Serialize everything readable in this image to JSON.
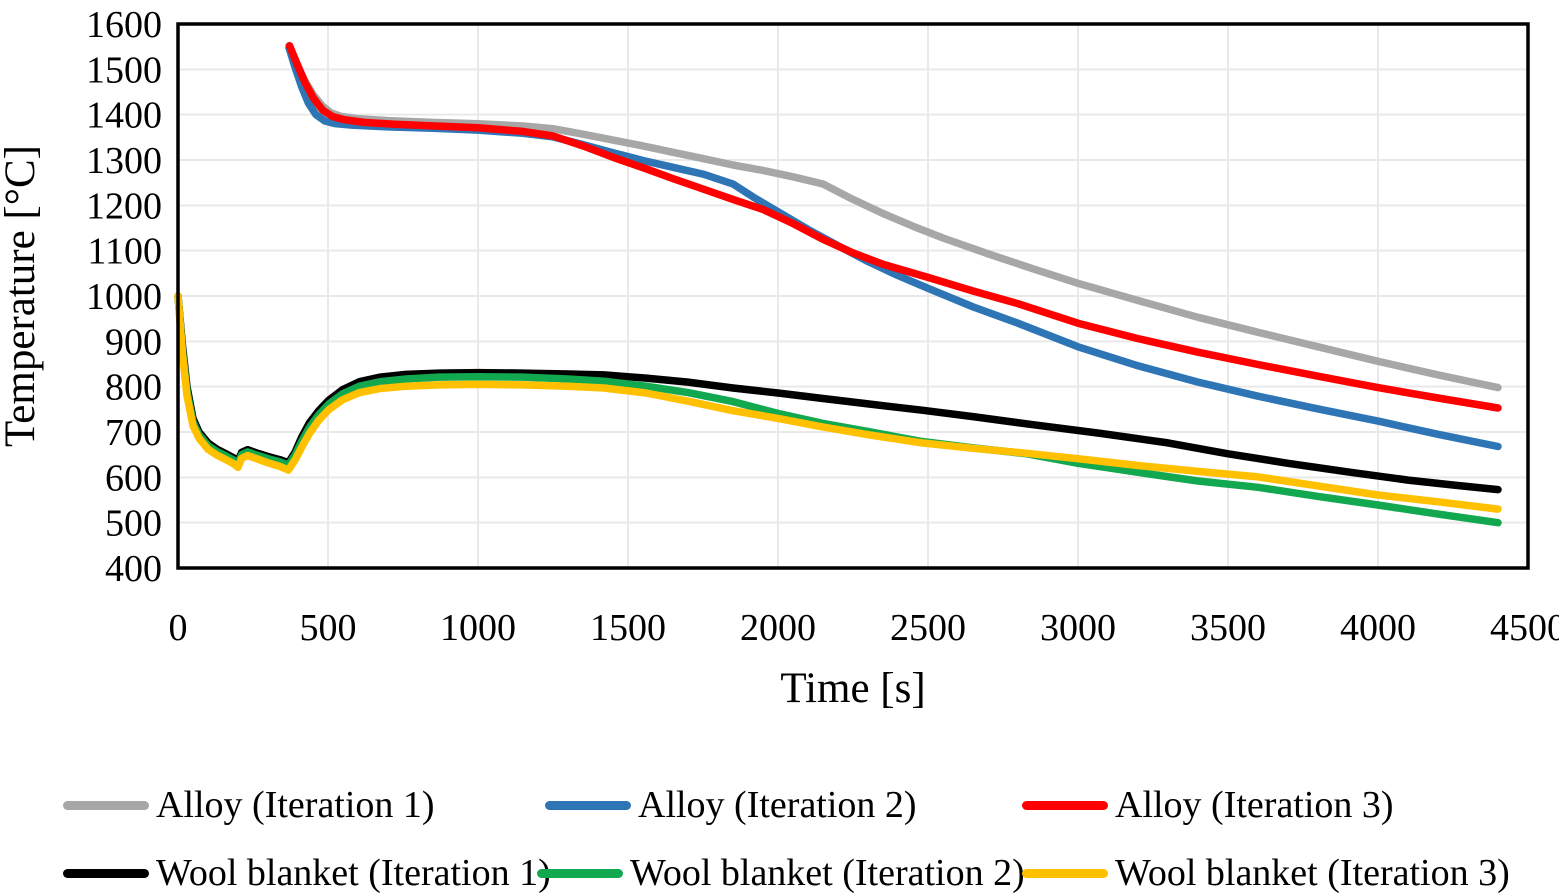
{
  "chart_data": {
    "type": "line",
    "title": "",
    "xlabel": "Time [s]",
    "ylabel": "Temperature [°C]",
    "xlim": [
      0,
      4500
    ],
    "ylim": [
      400,
      1600
    ],
    "x_ticks": [
      0,
      500,
      1000,
      1500,
      2000,
      2500,
      3000,
      3500,
      4000,
      4500
    ],
    "y_ticks": [
      400,
      500,
      600,
      700,
      800,
      900,
      1000,
      1100,
      1200,
      1300,
      1400,
      1500,
      1600
    ],
    "grid": "on",
    "gridline_color": "#E9E9E9",
    "axis_color": "#000000",
    "legend_position": "bottom",
    "series": [
      {
        "name": "Alloy (Iteration 1)",
        "color": "#A7A7A7",
        "points": [
          [
            370,
            1552
          ],
          [
            395,
            1515
          ],
          [
            420,
            1478
          ],
          [
            450,
            1445
          ],
          [
            480,
            1420
          ],
          [
            510,
            1404
          ],
          [
            545,
            1396
          ],
          [
            600,
            1391
          ],
          [
            700,
            1387
          ],
          [
            850,
            1383
          ],
          [
            1000,
            1380
          ],
          [
            1150,
            1375
          ],
          [
            1250,
            1369
          ],
          [
            1350,
            1357
          ],
          [
            1450,
            1344
          ],
          [
            1550,
            1331
          ],
          [
            1650,
            1317
          ],
          [
            1750,
            1303
          ],
          [
            1850,
            1289
          ],
          [
            1950,
            1277
          ],
          [
            2050,
            1263
          ],
          [
            2150,
            1247
          ],
          [
            2250,
            1213
          ],
          [
            2350,
            1182
          ],
          [
            2450,
            1154
          ],
          [
            2550,
            1128
          ],
          [
            2700,
            1093
          ],
          [
            2850,
            1060
          ],
          [
            3000,
            1028
          ],
          [
            3200,
            990
          ],
          [
            3400,
            953
          ],
          [
            3600,
            920
          ],
          [
            3800,
            888
          ],
          [
            4000,
            856
          ],
          [
            4200,
            826
          ],
          [
            4400,
            798
          ]
        ]
      },
      {
        "name": "Alloy (Iteration 2)",
        "color": "#2E75B6",
        "points": [
          [
            370,
            1548
          ],
          [
            390,
            1505
          ],
          [
            412,
            1462
          ],
          [
            435,
            1425
          ],
          [
            460,
            1400
          ],
          [
            490,
            1386
          ],
          [
            525,
            1380
          ],
          [
            580,
            1377
          ],
          [
            700,
            1373
          ],
          [
            850,
            1370
          ],
          [
            1000,
            1366
          ],
          [
            1150,
            1359
          ],
          [
            1250,
            1351
          ],
          [
            1350,
            1334
          ],
          [
            1450,
            1316
          ],
          [
            1550,
            1299
          ],
          [
            1650,
            1284
          ],
          [
            1750,
            1269
          ],
          [
            1850,
            1247
          ],
          [
            1925,
            1215
          ],
          [
            2000,
            1186
          ],
          [
            2100,
            1147
          ],
          [
            2200,
            1111
          ],
          [
            2300,
            1076
          ],
          [
            2400,
            1045
          ],
          [
            2500,
            1017
          ],
          [
            2650,
            976
          ],
          [
            2800,
            940
          ],
          [
            3000,
            888
          ],
          [
            3200,
            846
          ],
          [
            3400,
            810
          ],
          [
            3600,
            779
          ],
          [
            3800,
            751
          ],
          [
            4000,
            724
          ],
          [
            4200,
            695
          ],
          [
            4400,
            668
          ]
        ]
      },
      {
        "name": "Alloy (Iteration 3)",
        "color": "#FF0000",
        "points": [
          [
            372,
            1552
          ],
          [
            398,
            1510
          ],
          [
            424,
            1470
          ],
          [
            452,
            1436
          ],
          [
            482,
            1410
          ],
          [
            515,
            1396
          ],
          [
            555,
            1389
          ],
          [
            620,
            1383
          ],
          [
            720,
            1379
          ],
          [
            860,
            1375
          ],
          [
            1000,
            1371
          ],
          [
            1150,
            1363
          ],
          [
            1250,
            1353
          ],
          [
            1350,
            1331
          ],
          [
            1450,
            1306
          ],
          [
            1550,
            1283
          ],
          [
            1650,
            1259
          ],
          [
            1750,
            1236
          ],
          [
            1850,
            1213
          ],
          [
            1950,
            1191
          ],
          [
            2050,
            1160
          ],
          [
            2150,
            1125
          ],
          [
            2250,
            1095
          ],
          [
            2350,
            1070
          ],
          [
            2500,
            1041
          ],
          [
            2650,
            1011
          ],
          [
            2800,
            983
          ],
          [
            3000,
            940
          ],
          [
            3200,
            906
          ],
          [
            3400,
            876
          ],
          [
            3600,
            849
          ],
          [
            3800,
            823
          ],
          [
            4000,
            798
          ],
          [
            4200,
            775
          ],
          [
            4400,
            753
          ]
        ]
      },
      {
        "name": "Wool blanket (Iteration 1)",
        "color": "#000000",
        "points": [
          [
            0,
            1000
          ],
          [
            15,
            890
          ],
          [
            30,
            800
          ],
          [
            50,
            730
          ],
          [
            70,
            700
          ],
          [
            100,
            676
          ],
          [
            130,
            662
          ],
          [
            160,
            652
          ],
          [
            185,
            643
          ],
          [
            200,
            636
          ],
          [
            212,
            655
          ],
          [
            232,
            661
          ],
          [
            262,
            654
          ],
          [
            300,
            646
          ],
          [
            340,
            639
          ],
          [
            368,
            632
          ],
          [
            390,
            655
          ],
          [
            412,
            688
          ],
          [
            438,
            720
          ],
          [
            468,
            746
          ],
          [
            502,
            770
          ],
          [
            548,
            793
          ],
          [
            605,
            811
          ],
          [
            675,
            821
          ],
          [
            760,
            827
          ],
          [
            870,
            830
          ],
          [
            1000,
            831
          ],
          [
            1150,
            830
          ],
          [
            1300,
            828
          ],
          [
            1420,
            826
          ],
          [
            1560,
            819
          ],
          [
            1700,
            810
          ],
          [
            1850,
            797
          ],
          [
            2000,
            786
          ],
          [
            2150,
            774
          ],
          [
            2300,
            762
          ],
          [
            2480,
            748
          ],
          [
            2650,
            734
          ],
          [
            2850,
            716
          ],
          [
            3075,
            697
          ],
          [
            3300,
            676
          ],
          [
            3500,
            652
          ],
          [
            3700,
            631
          ],
          [
            3900,
            612
          ],
          [
            4100,
            594
          ],
          [
            4250,
            583
          ],
          [
            4400,
            573
          ]
        ]
      },
      {
        "name": "Wool blanket (Iteration 2)",
        "color": "#12A84F",
        "points": [
          [
            0,
            1000
          ],
          [
            15,
            880
          ],
          [
            30,
            790
          ],
          [
            50,
            722
          ],
          [
            70,
            694
          ],
          [
            100,
            670
          ],
          [
            130,
            657
          ],
          [
            160,
            647
          ],
          [
            185,
            638
          ],
          [
            200,
            631
          ],
          [
            212,
            650
          ],
          [
            232,
            656
          ],
          [
            262,
            649
          ],
          [
            300,
            641
          ],
          [
            340,
            634
          ],
          [
            368,
            627
          ],
          [
            390,
            649
          ],
          [
            412,
            679
          ],
          [
            438,
            710
          ],
          [
            468,
            737
          ],
          [
            502,
            761
          ],
          [
            548,
            784
          ],
          [
            605,
            801
          ],
          [
            675,
            811
          ],
          [
            760,
            817
          ],
          [
            870,
            821
          ],
          [
            1000,
            822
          ],
          [
            1150,
            821
          ],
          [
            1300,
            817
          ],
          [
            1420,
            812
          ],
          [
            1560,
            801
          ],
          [
            1700,
            787
          ],
          [
            1850,
            767
          ],
          [
            2000,
            741
          ],
          [
            2150,
            719
          ],
          [
            2300,
            701
          ],
          [
            2480,
            679
          ],
          [
            2650,
            665
          ],
          [
            2830,
            652
          ],
          [
            3000,
            631
          ],
          [
            3200,
            611
          ],
          [
            3400,
            592
          ],
          [
            3600,
            578
          ],
          [
            3800,
            558
          ],
          [
            4000,
            539
          ],
          [
            4200,
            519
          ],
          [
            4400,
            500
          ]
        ]
      },
      {
        "name": "Wool blanket (Iteration 3)",
        "color": "#FFC000",
        "points": [
          [
            0,
            1000
          ],
          [
            15,
            872
          ],
          [
            30,
            780
          ],
          [
            50,
            714
          ],
          [
            70,
            686
          ],
          [
            100,
            662
          ],
          [
            130,
            649
          ],
          [
            160,
            639
          ],
          [
            185,
            630
          ],
          [
            200,
            622
          ],
          [
            212,
            642
          ],
          [
            232,
            648
          ],
          [
            262,
            641
          ],
          [
            300,
            632
          ],
          [
            340,
            624
          ],
          [
            368,
            616
          ],
          [
            390,
            638
          ],
          [
            412,
            666
          ],
          [
            438,
            697
          ],
          [
            468,
            725
          ],
          [
            502,
            749
          ],
          [
            548,
            771
          ],
          [
            605,
            787
          ],
          [
            675,
            796
          ],
          [
            760,
            801
          ],
          [
            870,
            804
          ],
          [
            1000,
            805
          ],
          [
            1150,
            804
          ],
          [
            1300,
            801
          ],
          [
            1420,
            797
          ],
          [
            1560,
            786
          ],
          [
            1700,
            768
          ],
          [
            1850,
            747
          ],
          [
            2000,
            730
          ],
          [
            2150,
            711
          ],
          [
            2300,
            694
          ],
          [
            2480,
            676
          ],
          [
            2650,
            664
          ],
          [
            2830,
            653
          ],
          [
            3000,
            641
          ],
          [
            3200,
            626
          ],
          [
            3400,
            613
          ],
          [
            3600,
            601
          ],
          [
            3800,
            581
          ],
          [
            4000,
            561
          ],
          [
            4200,
            546
          ],
          [
            4400,
            530
          ]
        ]
      }
    ]
  }
}
